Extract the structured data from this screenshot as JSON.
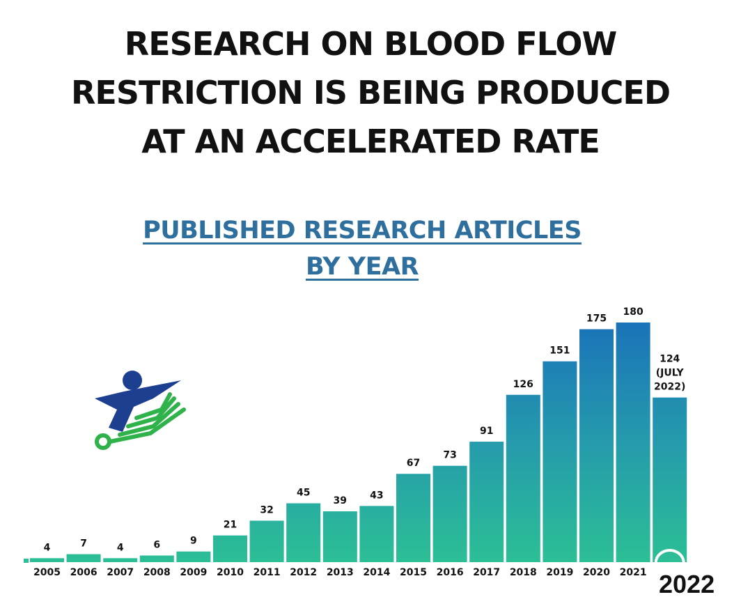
{
  "headline": {
    "line1": "RESEARCH ON BLOOD FLOW",
    "line2": "RESTRICTION IS BEING PRODUCED",
    "line3": "AT AN ACCELERATED RATE"
  },
  "subtitle": {
    "line1": "PUBLISHED RESEARCH ARTICLES",
    "line2": "BY YEAR"
  },
  "colors": {
    "bar_top": "#1a72b8",
    "bar_bottom": "#2cbf95",
    "bar_gap": "#ffffff",
    "subtitle": "#2e6f9e",
    "logo_blue": "#1d3f8f",
    "logo_green": "#2fb24a"
  },
  "logo": {
    "icon": "figure-with-green-lines-logo"
  },
  "chart_data": {
    "type": "bar",
    "categories": [
      "2005",
      "2006",
      "2007",
      "2008",
      "2009",
      "2010",
      "2011",
      "2012",
      "2013",
      "2014",
      "2015",
      "2016",
      "2017",
      "2018",
      "2019",
      "2020",
      "2021",
      "2022"
    ],
    "values": [
      4,
      7,
      4,
      6,
      9,
      21,
      32,
      45,
      39,
      43,
      67,
      73,
      91,
      126,
      151,
      175,
      180,
      124
    ],
    "data_labels": [
      "4",
      "7",
      "4",
      "6",
      "9",
      "21",
      "32",
      "45",
      "39",
      "43",
      "67",
      "73",
      "91",
      "126",
      "151",
      "175",
      "180",
      "124\n(JULY\n2022)"
    ],
    "tick_labels": [
      "2005",
      "2006",
      "2007",
      "2008",
      "2009",
      "2010",
      "2011",
      "2012",
      "2013",
      "2014",
      "2015",
      "2016",
      "2017",
      "2018",
      "2019",
      "2020",
      "2021",
      ""
    ],
    "last_category_label": "2022",
    "title": "PUBLISHED RESEARCH ARTICLES BY YEAR",
    "xlabel": "",
    "ylabel": "",
    "ylim": [
      0,
      180
    ],
    "grid": false,
    "legend": "none"
  }
}
